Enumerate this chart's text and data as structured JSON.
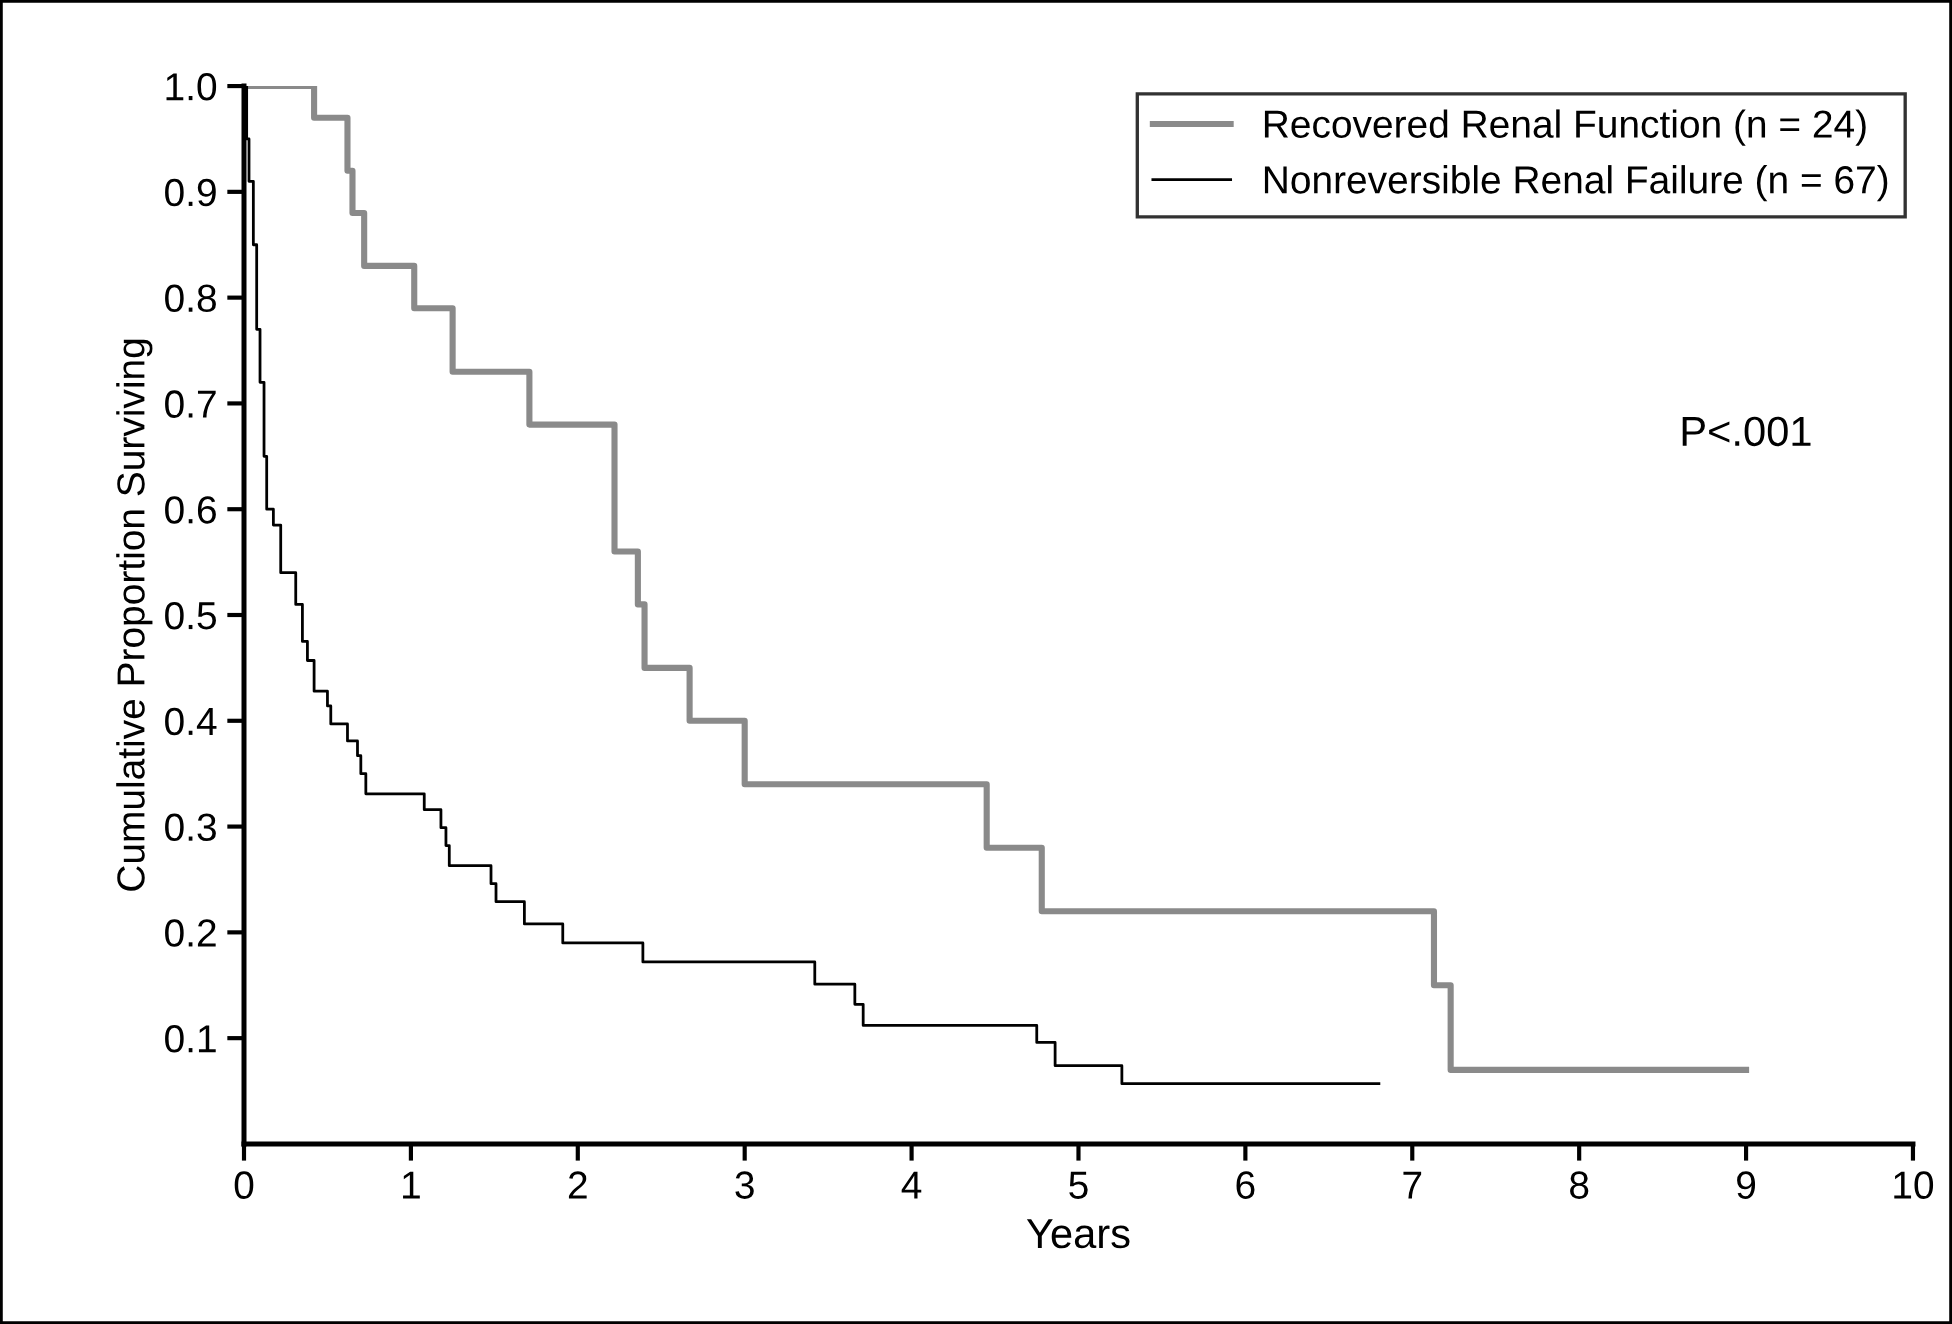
{
  "chart_data": {
    "type": "step",
    "xlabel": "Years",
    "ylabel": "Cumulative Proportion Surviving",
    "xlim": [
      0,
      10
    ],
    "ylim": [
      0,
      1.0
    ],
    "xticks": [
      0,
      1,
      2,
      3,
      4,
      5,
      6,
      7,
      8,
      9,
      10
    ],
    "yticks": [
      0.1,
      0.2,
      0.3,
      0.4,
      0.5,
      0.6,
      0.7,
      0.8,
      0.9,
      {
        "value": 1,
        "label": "1.0"
      }
    ],
    "grid": false,
    "legend": "top right",
    "annotations": [
      "P<.001"
    ],
    "series": [
      {
        "name": "Recovered Renal Function (n = 24)",
        "color": "#8a8a8a",
        "x": [
          0,
          0.42,
          0.62,
          0.65,
          0.72,
          1.02,
          1.25,
          1.71,
          2.22,
          2.36,
          2.4,
          2.67,
          3.0,
          4.45,
          4.78,
          7.13,
          7.23,
          9.0
        ],
        "values": [
          1.0,
          0.97,
          0.92,
          0.88,
          0.83,
          0.79,
          0.73,
          0.68,
          0.56,
          0.51,
          0.45,
          0.4,
          0.34,
          0.28,
          0.22,
          0.15,
          0.07,
          0.07
        ]
      },
      {
        "name": "Nonreversible Renal Failure (n = 67)",
        "color": "#000000",
        "x": [
          0,
          0.016,
          0.03,
          0.056,
          0.076,
          0.096,
          0.12,
          0.136,
          0.176,
          0.22,
          0.31,
          0.35,
          0.38,
          0.42,
          0.5,
          0.52,
          0.62,
          0.68,
          0.7,
          0.73,
          1.08,
          1.18,
          1.21,
          1.23,
          1.48,
          1.51,
          1.68,
          1.91,
          2.39,
          3.42,
          3.66,
          3.71,
          4.75,
          4.86,
          5.26,
          6.8
        ],
        "values": [
          1.0,
          0.95,
          0.91,
          0.85,
          0.77,
          0.72,
          0.65,
          0.6,
          0.585,
          0.54,
          0.51,
          0.475,
          0.457,
          0.428,
          0.414,
          0.397,
          0.381,
          0.367,
          0.35,
          0.331,
          0.316,
          0.299,
          0.282,
          0.263,
          0.246,
          0.229,
          0.208,
          0.19,
          0.172,
          0.151,
          0.132,
          0.112,
          0.096,
          0.074,
          0.057,
          0.057
        ]
      }
    ]
  }
}
